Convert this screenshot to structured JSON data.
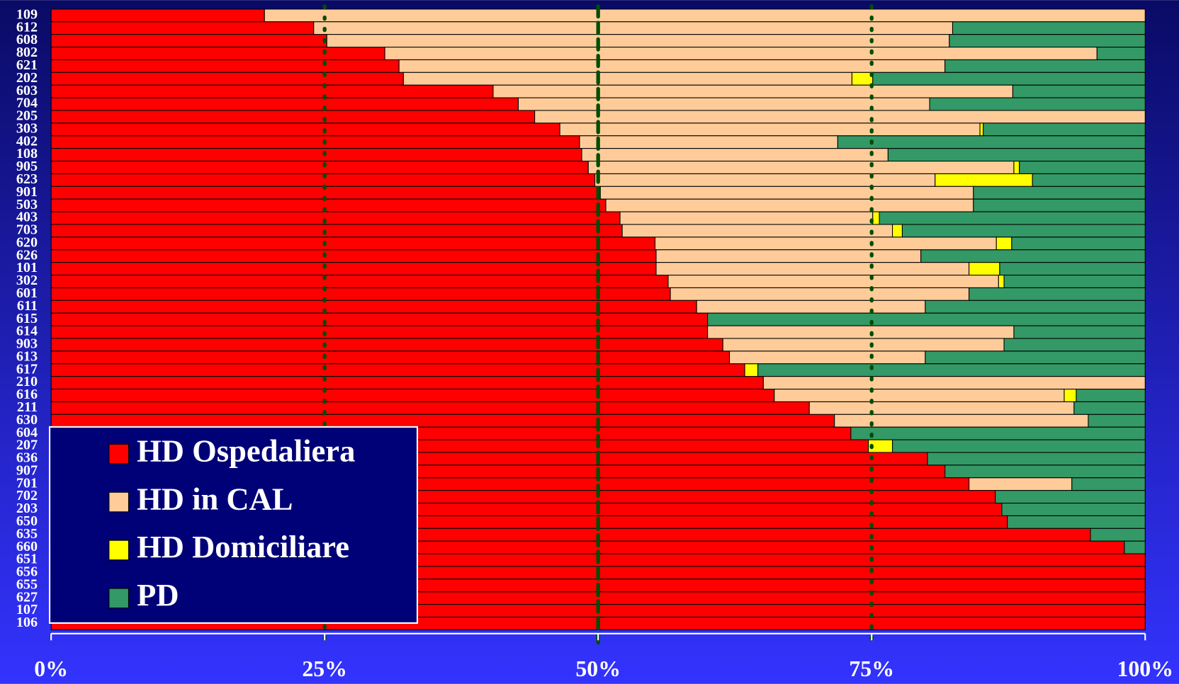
{
  "chart_data": {
    "type": "stacked-bar-horizontal",
    "categories": [
      "109",
      "612",
      "608",
      "802",
      "621",
      "202",
      "603",
      "704",
      "205",
      "303",
      "402",
      "108",
      "905",
      "623",
      "901",
      "503",
      "403",
      "703",
      "620",
      "626",
      "101",
      "302",
      "601",
      "611",
      "615",
      "614",
      "903",
      "613",
      "617",
      "210",
      "616",
      "211",
      "630",
      "604",
      "207",
      "636",
      "907",
      "701",
      "702",
      "203",
      "650",
      "635",
      "660",
      "651",
      "656",
      "655",
      "627",
      "107",
      "106"
    ],
    "series": [
      {
        "name": "HD Ospedaliera",
        "color": "#ff0000",
        "values": [
          19.5,
          24.0,
          25.2,
          30.5,
          31.8,
          32.2,
          40.4,
          42.7,
          44.2,
          46.5,
          48.3,
          48.5,
          49.1,
          49.7,
          50.2,
          50.7,
          52.0,
          52.2,
          55.2,
          55.3,
          55.3,
          56.4,
          56.6,
          59.0,
          60.0,
          60.0,
          61.4,
          62.0,
          63.4,
          65.1,
          66.1,
          69.3,
          71.6,
          73.1,
          74.7,
          80.1,
          81.7,
          83.9,
          86.3,
          86.9,
          87.4,
          95.0,
          98.1,
          100,
          100,
          100,
          100,
          100,
          100
        ]
      },
      {
        "name": "HD in CAL",
        "color": "#ffcc99",
        "values": [
          80.5,
          58.4,
          56.9,
          65.1,
          49.9,
          41.0,
          47.5,
          37.6,
          55.8,
          38.4,
          23.6,
          28.0,
          38.9,
          31.1,
          34.1,
          33.6,
          23.1,
          24.7,
          31.2,
          24.2,
          28.6,
          30.2,
          27.3,
          20.9,
          0,
          28.0,
          25.7,
          17.9,
          0,
          34.9,
          26.5,
          24.2,
          23.2,
          0,
          0,
          0,
          0,
          9.4,
          0,
          0,
          0,
          0,
          0,
          0,
          0,
          0,
          0,
          0,
          0
        ]
      },
      {
        "name": "HD Domiciliare",
        "color": "#ffff00",
        "values": [
          0,
          0,
          0,
          0,
          0,
          1.9,
          0,
          0,
          0,
          0.3,
          0,
          0,
          0.5,
          8.9,
          0,
          0,
          0.6,
          0.9,
          1.4,
          0,
          2.8,
          0.5,
          0,
          0,
          0,
          0,
          0,
          0,
          1.2,
          0,
          1.1,
          0,
          0,
          0,
          2.2,
          0,
          0,
          0,
          0,
          0,
          0,
          0,
          0,
          0,
          0,
          0,
          0,
          0,
          0
        ]
      },
      {
        "name": "PD",
        "color": "#339966",
        "values": [
          0,
          17.6,
          17.9,
          4.4,
          18.3,
          24.9,
          12.1,
          19.7,
          0,
          14.8,
          28.1,
          23.5,
          11.5,
          10.3,
          15.7,
          15.7,
          24.3,
          22.2,
          12.2,
          20.5,
          13.3,
          12.9,
          16.1,
          20.1,
          40.0,
          12.0,
          12.9,
          20.1,
          35.4,
          0,
          6.3,
          6.5,
          5.2,
          26.9,
          23.1,
          19.9,
          18.3,
          6.7,
          13.7,
          13.1,
          12.6,
          5.0,
          1.9,
          0,
          0,
          0,
          0,
          0,
          0
        ]
      }
    ],
    "xlim": [
      0,
      100
    ],
    "xticks": [
      {
        "value": 0,
        "label": "0%"
      },
      {
        "value": 25,
        "label": "25%"
      },
      {
        "value": 50,
        "label": "50%"
      },
      {
        "value": 75,
        "label": "75%"
      },
      {
        "value": 100,
        "label": "100%"
      }
    ],
    "grid": true
  }
}
